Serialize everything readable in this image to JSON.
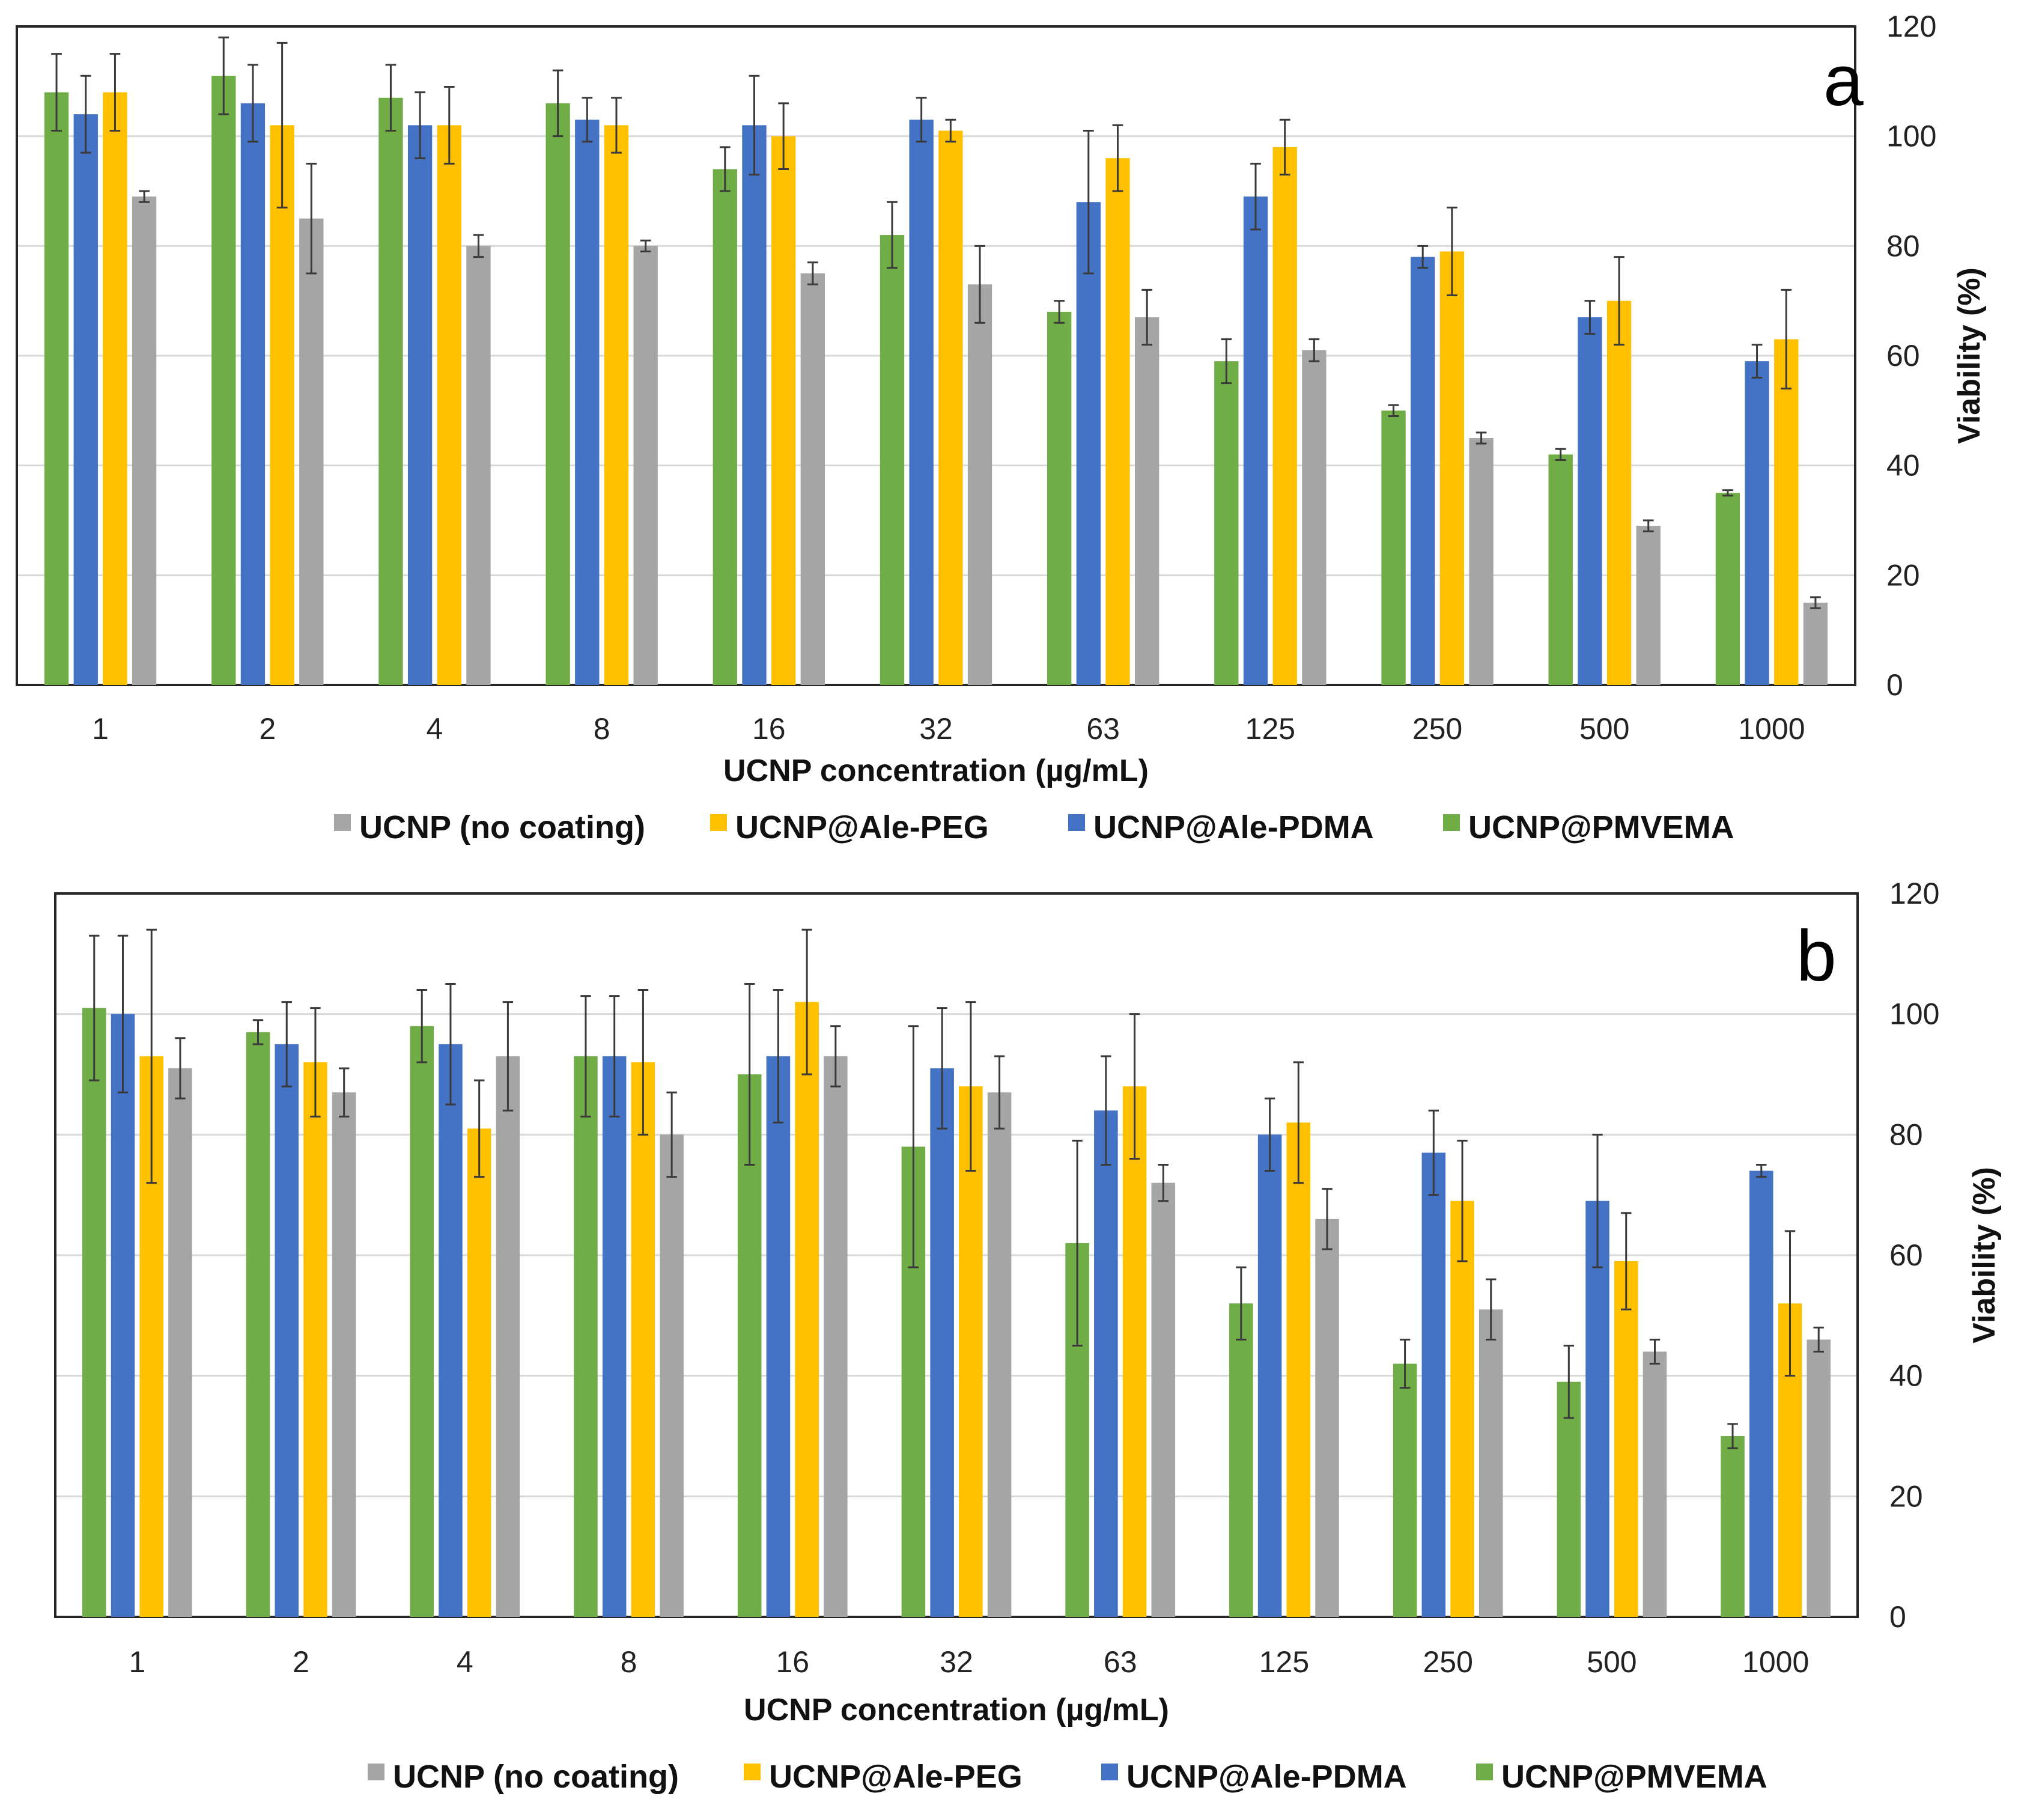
{
  "chart_data": [
    {
      "type": "bar",
      "panel": "a",
      "xlabel": "UCNP concentration (µg/mL)",
      "ylabel": "Viability (%)",
      "ylim": [
        0,
        120
      ],
      "yticks": [
        0,
        20,
        40,
        60,
        80,
        100,
        120
      ],
      "y_axis_side": "right",
      "grid": true,
      "legend_position": "bottom",
      "categories": [
        "1",
        "2",
        "4",
        "8",
        "16",
        "32",
        "63",
        "125",
        "250",
        "500",
        "1000"
      ],
      "series": [
        {
          "name": "UCNP@PMVEMA",
          "color": "#70ad47",
          "values": [
            108,
            111,
            107,
            106,
            94,
            82,
            68,
            59,
            50,
            42,
            35
          ],
          "errors": [
            7,
            7,
            6,
            6,
            4,
            6,
            2,
            4,
            1,
            1,
            0.5
          ]
        },
        {
          "name": "UCNP@Ale-PDMA",
          "color": "#4472c4",
          "values": [
            104,
            106,
            102,
            103,
            102,
            103,
            88,
            89,
            78,
            67,
            59
          ],
          "errors": [
            7,
            7,
            6,
            4,
            9,
            4,
            13,
            6,
            2,
            3,
            3
          ]
        },
        {
          "name": "UCNP@Ale-PEG",
          "color": "#ffc000",
          "values": [
            108,
            102,
            102,
            102,
            100,
            101,
            96,
            98,
            79,
            70,
            63
          ],
          "errors": [
            7,
            15,
            7,
            5,
            6,
            2,
            6,
            5,
            8,
            8,
            9
          ]
        },
        {
          "name": "UCNP (no coating)",
          "color": "#a5a5a5",
          "values": [
            89,
            85,
            80,
            80,
            75,
            73,
            67,
            61,
            45,
            29,
            15
          ],
          "errors": [
            1,
            10,
            2,
            1,
            2,
            7,
            5,
            2,
            1,
            1,
            1
          ]
        }
      ],
      "legend_order": [
        "UCNP (no coating)",
        "UCNP@Ale-PEG",
        "UCNP@Ale-PDMA",
        "UCNP@PMVEMA"
      ]
    },
    {
      "type": "bar",
      "panel": "b",
      "xlabel": "UCNP concentration (µg/mL)",
      "ylabel": "Viability (%)",
      "ylim": [
        0,
        120
      ],
      "yticks": [
        0,
        20,
        40,
        60,
        80,
        100,
        120
      ],
      "y_axis_side": "right",
      "grid": true,
      "legend_position": "bottom",
      "categories": [
        "1",
        "2",
        "4",
        "8",
        "16",
        "32",
        "63",
        "125",
        "250",
        "500",
        "1000"
      ],
      "series": [
        {
          "name": "UCNP@PMVEMA",
          "color": "#70ad47",
          "values": [
            101,
            97,
            98,
            93,
            90,
            78,
            62,
            52,
            42,
            39,
            30
          ],
          "errors": [
            12,
            2,
            6,
            10,
            15,
            20,
            17,
            6,
            4,
            6,
            2
          ]
        },
        {
          "name": "UCNP@Ale-PDMA",
          "color": "#4472c4",
          "values": [
            100,
            95,
            95,
            93,
            93,
            91,
            84,
            80,
            77,
            69,
            74
          ],
          "errors": [
            13,
            7,
            10,
            10,
            11,
            10,
            9,
            6,
            7,
            11,
            1
          ]
        },
        {
          "name": "UCNP@Ale-PEG",
          "color": "#ffc000",
          "values": [
            93,
            92,
            81,
            92,
            102,
            88,
            88,
            82,
            69,
            59,
            52
          ],
          "errors": [
            21,
            9,
            8,
            12,
            12,
            14,
            12,
            10,
            10,
            8,
            12
          ]
        },
        {
          "name": "UCNP (no coating)",
          "color": "#a5a5a5",
          "values": [
            91,
            87,
            93,
            80,
            93,
            87,
            72,
            66,
            51,
            44,
            46
          ],
          "errors": [
            5,
            4,
            9,
            7,
            5,
            6,
            3,
            5,
            5,
            2,
            2
          ]
        }
      ],
      "legend_order": [
        "UCNP (no coating)",
        "UCNP@Ale-PEG",
        "UCNP@Ale-PDMA",
        "UCNP@PMVEMA"
      ]
    }
  ]
}
